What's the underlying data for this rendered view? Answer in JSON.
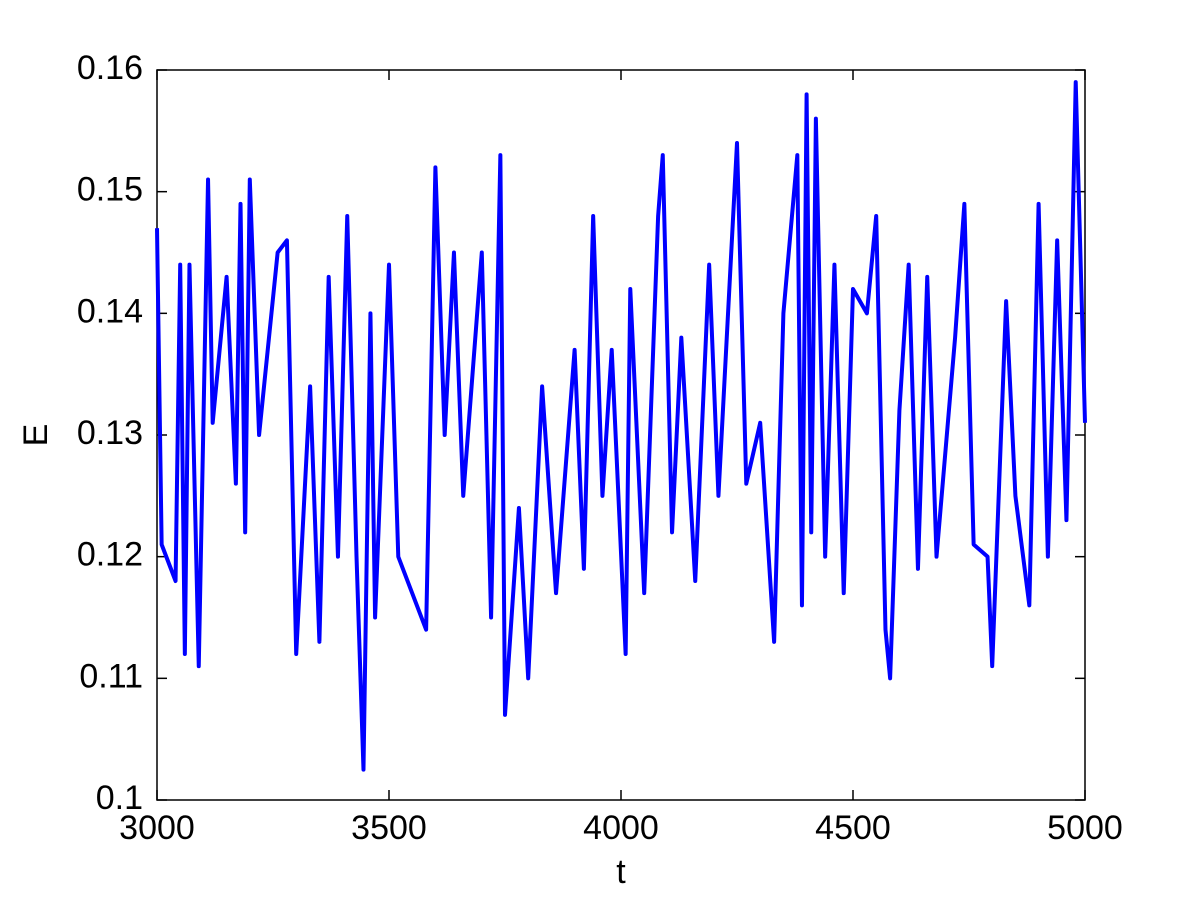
{
  "chart_data": {
    "type": "line",
    "xlabel": "t",
    "ylabel": "E",
    "x": [
      3000,
      3010,
      3040,
      3050,
      3060,
      3070,
      3090,
      3110,
      3120,
      3150,
      3170,
      3180,
      3190,
      3200,
      3220,
      3260,
      3280,
      3300,
      3330,
      3350,
      3370,
      3390,
      3410,
      3430,
      3445,
      3460,
      3470,
      3500,
      3520,
      3550,
      3580,
      3600,
      3620,
      3640,
      3660,
      3700,
      3720,
      3740,
      3750,
      3780,
      3800,
      3830,
      3860,
      3900,
      3920,
      3940,
      3960,
      3980,
      4010,
      4020,
      4050,
      4080,
      4090,
      4110,
      4130,
      4160,
      4190,
      4210,
      4250,
      4270,
      4300,
      4330,
      4350,
      4380,
      4390,
      4400,
      4410,
      4420,
      4440,
      4460,
      4480,
      4500,
      4530,
      4550,
      4570,
      4580,
      4600,
      4620,
      4640,
      4660,
      4680,
      4720,
      4740,
      4760,
      4790,
      4800,
      4830,
      4850,
      4880,
      4900,
      4920,
      4940,
      4960,
      4980,
      5000
    ],
    "series": [
      {
        "name": "E",
        "color": "#0000ff",
        "values": [
          0.147,
          0.121,
          0.118,
          0.144,
          0.112,
          0.144,
          0.111,
          0.151,
          0.131,
          0.143,
          0.126,
          0.149,
          0.122,
          0.151,
          0.13,
          0.145,
          0.146,
          0.112,
          0.134,
          0.113,
          0.143,
          0.12,
          0.148,
          0.12,
          0.1025,
          0.14,
          0.115,
          0.144,
          0.12,
          0.117,
          0.114,
          0.152,
          0.13,
          0.145,
          0.125,
          0.145,
          0.115,
          0.153,
          0.107,
          0.124,
          0.11,
          0.134,
          0.117,
          0.137,
          0.119,
          0.148,
          0.125,
          0.137,
          0.112,
          0.142,
          0.117,
          0.148,
          0.153,
          0.122,
          0.138,
          0.118,
          0.144,
          0.125,
          0.154,
          0.126,
          0.131,
          0.113,
          0.14,
          0.153,
          0.116,
          0.158,
          0.122,
          0.156,
          0.12,
          0.144,
          0.117,
          0.142,
          0.14,
          0.148,
          0.114,
          0.11,
          0.132,
          0.144,
          0.119,
          0.143,
          0.12,
          0.138,
          0.149,
          0.121,
          0.12,
          0.111,
          0.141,
          0.125,
          0.116,
          0.149,
          0.12,
          0.146,
          0.123,
          0.159,
          0.131
        ]
      }
    ],
    "xlim": [
      3000,
      5000
    ],
    "xticks": [
      3000,
      3500,
      4000,
      4500,
      5000
    ],
    "ylim": [
      0.1,
      0.16
    ],
    "yticks": [
      0.1,
      0.11,
      0.12,
      0.13,
      0.14,
      0.15,
      0.16
    ]
  }
}
